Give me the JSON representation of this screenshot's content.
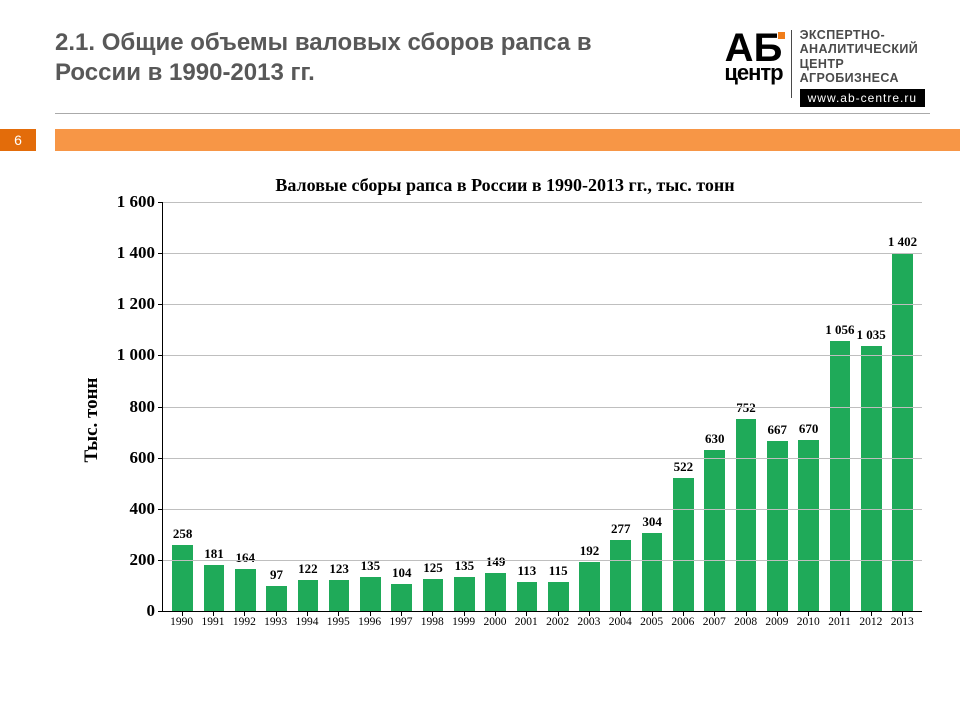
{
  "header": {
    "title": "2.1.  Общие объемы валовых сборов рапса в России в 1990-2013 гг.",
    "page_number": "6"
  },
  "logo": {
    "mark_top": "АБ",
    "mark_bottom": "центр",
    "desc_line1": "ЭКСПЕРТНО-",
    "desc_line2": "АНАЛИТИЧЕСКИЙ",
    "desc_line3": "ЦЕНТР",
    "desc_line4": "АГРОБИЗНЕСА",
    "url": "www.ab-centre.ru"
  },
  "chart": {
    "type": "bar",
    "title": "Валовые сборы рапса в России в 1990-2013 гг., тыс. тонн",
    "ylabel": "Тыс. тонн",
    "ylim": [
      0,
      1600
    ],
    "ytick_step": 200,
    "yticks": [
      "0",
      "200",
      "400",
      "600",
      "800",
      "1 000",
      "1 200",
      "1 400",
      "1 600"
    ],
    "categories": [
      "1990",
      "1991",
      "1992",
      "1993",
      "1994",
      "1995",
      "1996",
      "1997",
      "1998",
      "1999",
      "2000",
      "2001",
      "2002",
      "2003",
      "2004",
      "2005",
      "2006",
      "2007",
      "2008",
      "2009",
      "2010",
      "2011",
      "2012",
      "2013"
    ],
    "values": [
      258,
      181,
      164,
      97,
      122,
      123,
      135,
      104,
      125,
      135,
      149,
      113,
      115,
      192,
      277,
      304,
      522,
      630,
      752,
      667,
      670,
      1056,
      1035,
      1402
    ],
    "value_labels": [
      "258",
      "181",
      "164",
      "97",
      "122",
      "123",
      "135",
      "104",
      "125",
      "135",
      "149",
      "113",
      "115",
      "192",
      "277",
      "304",
      "522",
      "630",
      "752",
      "667",
      "670",
      "1 056",
      "1 035",
      "1 402"
    ],
    "bar_color": "#1faa59",
    "background_color": "#ffffff",
    "grid_color": "#bfbfbf",
    "axis_color": "#000000",
    "title_fontsize": 18,
    "label_fontsize": 19,
    "tick_fontsize": 17,
    "bar_width": 0.66
  },
  "colors": {
    "accent_dark": "#e36c0a",
    "accent_light": "#f79646",
    "title_text": "#585858"
  }
}
